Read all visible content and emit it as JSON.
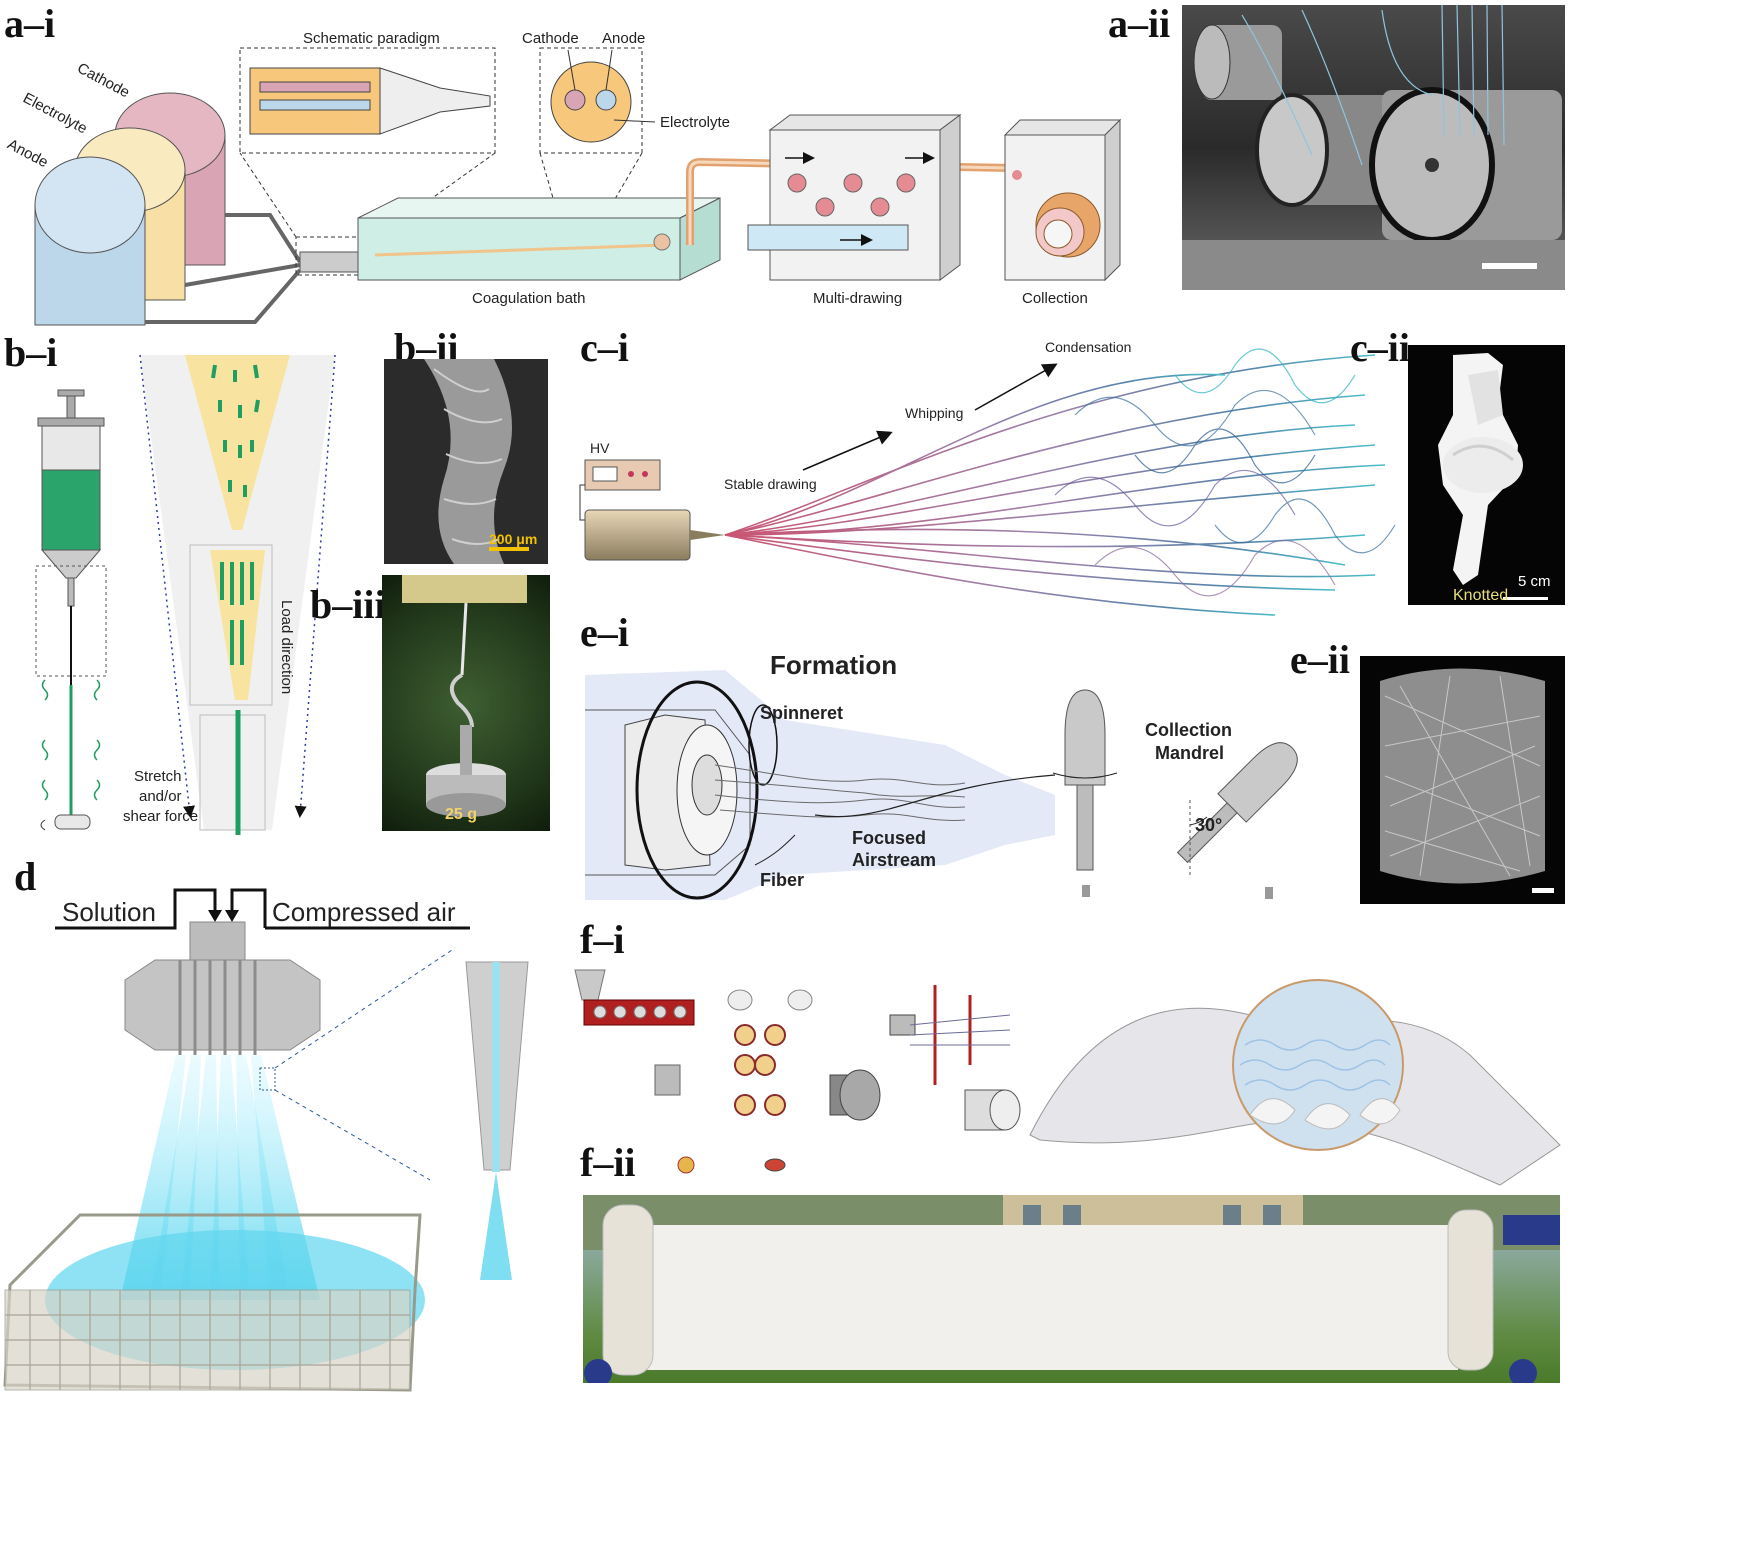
{
  "panels": {
    "a_i": "a–i",
    "a_ii": "a–ii",
    "b_i": "b–i",
    "b_ii": "b–ii",
    "b_iii": "b–iii",
    "c_i": "c–i",
    "c_ii": "c–ii",
    "d": "d",
    "e_i": "e–i",
    "e_ii": "e–ii",
    "f_i": "f–i",
    "f_ii": "f–ii"
  },
  "a_i": {
    "cathode": "Cathode",
    "electrolyte": "Electrolyte",
    "anode": "Anode",
    "schematic_paradigm": "Schematic paradigm",
    "inset_cathode": "Cathode",
    "inset_anode": "Anode",
    "inset_electrolyte": "Electrolyte",
    "coagulation_bath": "Coagulation bath",
    "multi_drawing": "Multi-drawing",
    "collection": "Collection"
  },
  "b_i": {
    "stretch": "Stretch",
    "and_or": "and/or",
    "shear_force": "shear force",
    "load_direction": "Load direction"
  },
  "b_ii": {
    "scale": "200 μm"
  },
  "b_iii": {
    "weight": "25 g"
  },
  "c_i": {
    "hv": "HV",
    "stable_drawing": "Stable drawing",
    "whipping": "Whipping",
    "condensation": "Condensation"
  },
  "c_ii": {
    "knotted": "Knotted",
    "scale": "5 cm"
  },
  "d": {
    "solution": "Solution",
    "compressed_air": "Compressed air"
  },
  "e_i": {
    "title": "Formation",
    "spinneret": "Spinneret",
    "focused_airstream_1": "Focused",
    "focused_airstream_2": "Airstream",
    "fiber": "Fiber",
    "collection_1": "Collection",
    "collection_2": "Mandrel",
    "angle": "30°"
  },
  "colors": {
    "tank_anode": "#bcd6ea",
    "tank_electrolyte": "#f7dfa5",
    "tank_cathode": "#d9a5b4",
    "bath": "#cfeee6",
    "fiber_red": "#c2375a",
    "fiber_blue": "#2a9bc0",
    "green": "#1f9e5f",
    "cyan": "#5fd6ee"
  }
}
